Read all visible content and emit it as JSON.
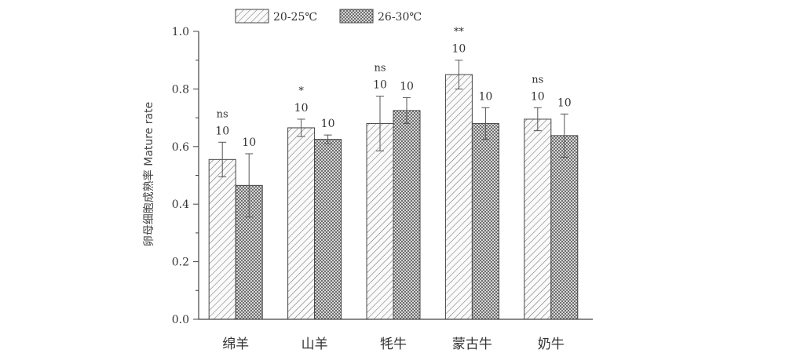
{
  "chart_data": {
    "type": "bar",
    "ylabel": "卵母细胞成熟率  Mature rate",
    "ylim": [
      0.0,
      1.0
    ],
    "yticks": [
      "0.0",
      "0.2",
      "0.4",
      "0.6",
      "0.8",
      "1.0"
    ],
    "categories": [
      "绵羊",
      "山羊",
      "牦牛",
      "蒙古牛",
      "奶牛"
    ],
    "series": [
      {
        "name": "20-25℃",
        "values": [
          0.555,
          0.665,
          0.68,
          0.85,
          0.695
        ],
        "errors": [
          0.06,
          0.03,
          0.095,
          0.05,
          0.04
        ],
        "labels": [
          "10",
          "10",
          "10",
          "10",
          "10"
        ]
      },
      {
        "name": "26-30℃",
        "values": [
          0.465,
          0.625,
          0.725,
          0.68,
          0.638
        ],
        "errors": [
          0.11,
          0.015,
          0.045,
          0.055,
          0.075
        ],
        "labels": [
          "10",
          "10",
          "10",
          "10",
          "10"
        ]
      }
    ],
    "significance": [
      "ns",
      "*",
      "ns",
      "**",
      "ns"
    ],
    "legend_position": "top-center"
  }
}
